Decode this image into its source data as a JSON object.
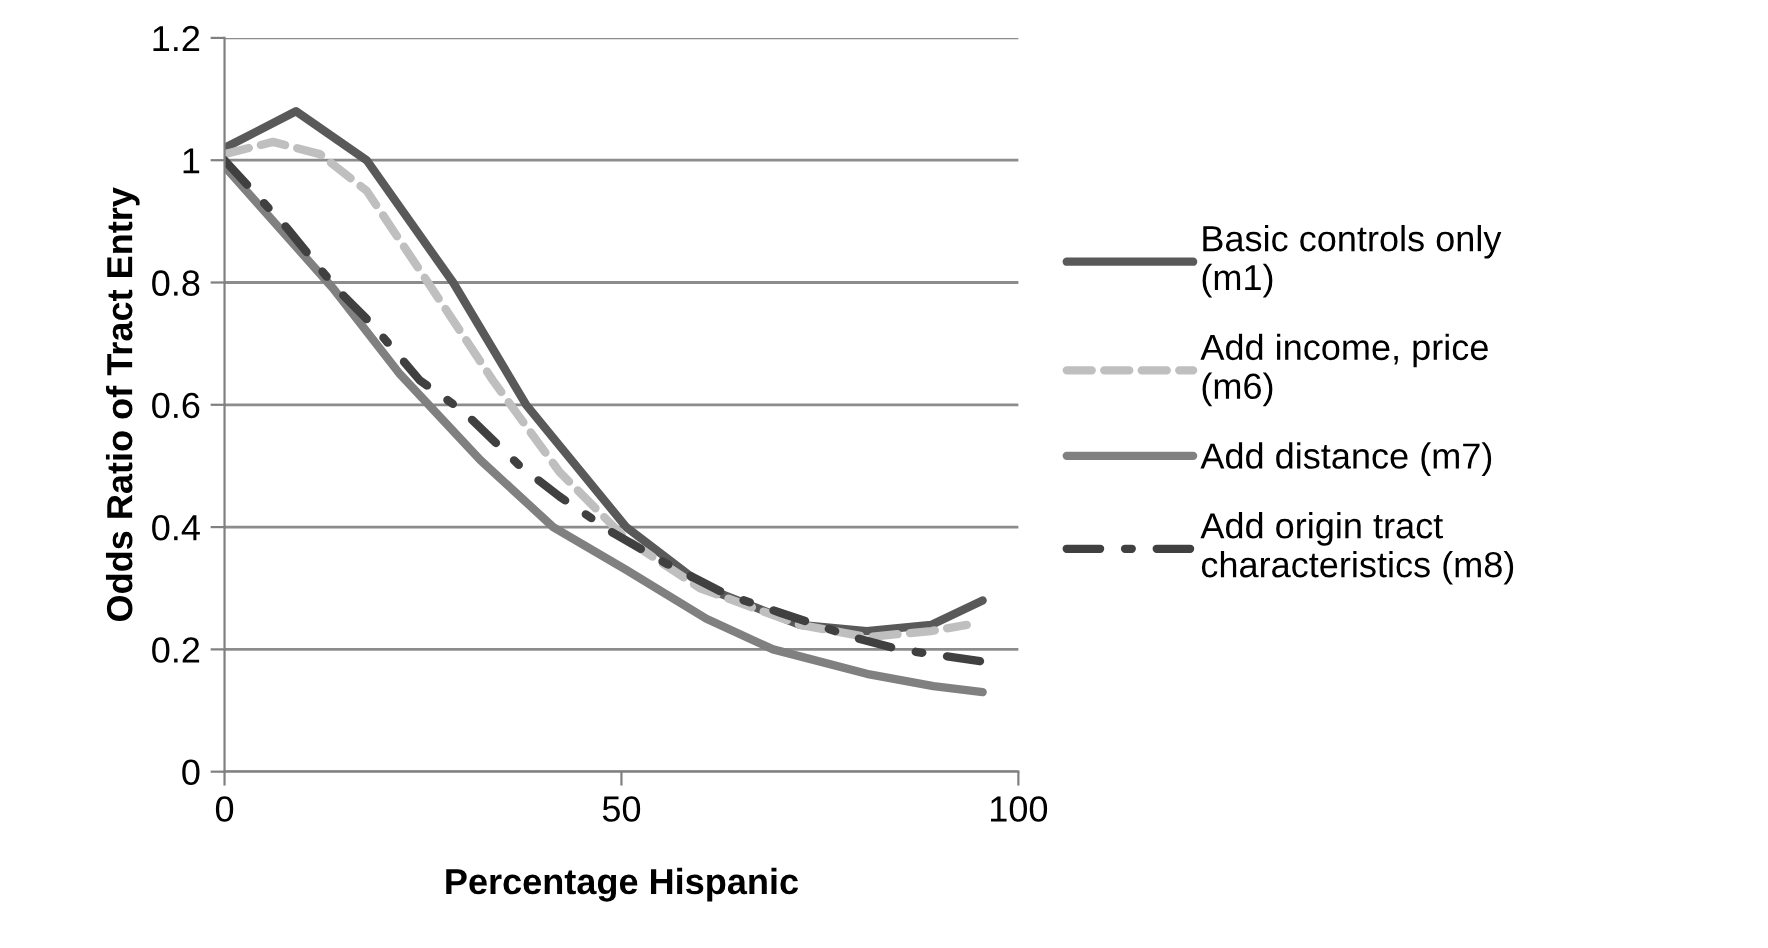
{
  "chart_data": {
    "type": "line",
    "xlabel": "Percentage Hispanic",
    "ylabel": "Odds Ratio of Tract Entry",
    "xlim": [
      0,
      100
    ],
    "xticks": [
      0,
      50,
      100
    ],
    "ylim": [
      0,
      1.2
    ],
    "yticks": [
      0,
      0.2,
      0.4,
      0.6,
      0.8,
      1,
      1.2
    ],
    "grid": "y",
    "legend": "right",
    "marker": "none",
    "series": [
      {
        "name": "Basic controls only\n(m1)",
        "color": "#595959",
        "line_style": "solid",
        "x": [
          0,
          9,
          17.9,
          28.8,
          38,
          50.6,
          60.7,
          72.5,
          80.9,
          89,
          95.5
        ],
        "values": [
          1.02,
          1.08,
          1.0,
          0.8,
          0.6,
          0.4,
          0.3,
          0.24,
          0.23,
          0.24,
          0.28
        ]
      },
      {
        "name": "Add income, price\n(m6)",
        "color": "#bfbfbf",
        "line_style": "dashed",
        "x": [
          0,
          6.1,
          12,
          17.9,
          24.6,
          33.8,
          42.2,
          50.6,
          59.9,
          72.5,
          80.9,
          89,
          93.5
        ],
        "values": [
          1.01,
          1.03,
          1.01,
          0.95,
          0.82,
          0.64,
          0.49,
          0.38,
          0.3,
          0.24,
          0.22,
          0.23,
          0.24
        ]
      },
      {
        "name": "Add distance (m7)",
        "color": "#808080",
        "line_style": "solid",
        "x": [
          0,
          13.7,
          22.1,
          32.2,
          41.4,
          50.6,
          60.7,
          69.1,
          80.9,
          89.3,
          95.5
        ],
        "values": [
          0.99,
          0.79,
          0.65,
          0.51,
          0.4,
          0.33,
          0.25,
          0.2,
          0.16,
          0.14,
          0.13
        ]
      },
      {
        "name": "Add origin tract\ncharacteristics (m8)",
        "color": "#404040",
        "line_style": "dashdot",
        "x": [
          0,
          7.8,
          14.1,
          18.7,
          24.6,
          30,
          37.2,
          42.2,
          49,
          55.7,
          63.2,
          70,
          79.2,
          85,
          95.5
        ],
        "values": [
          1.0,
          0.89,
          0.79,
          0.73,
          0.64,
          0.59,
          0.5,
          0.45,
          0.39,
          0.34,
          0.29,
          0.26,
          0.22,
          0.2,
          0.18
        ]
      }
    ]
  }
}
